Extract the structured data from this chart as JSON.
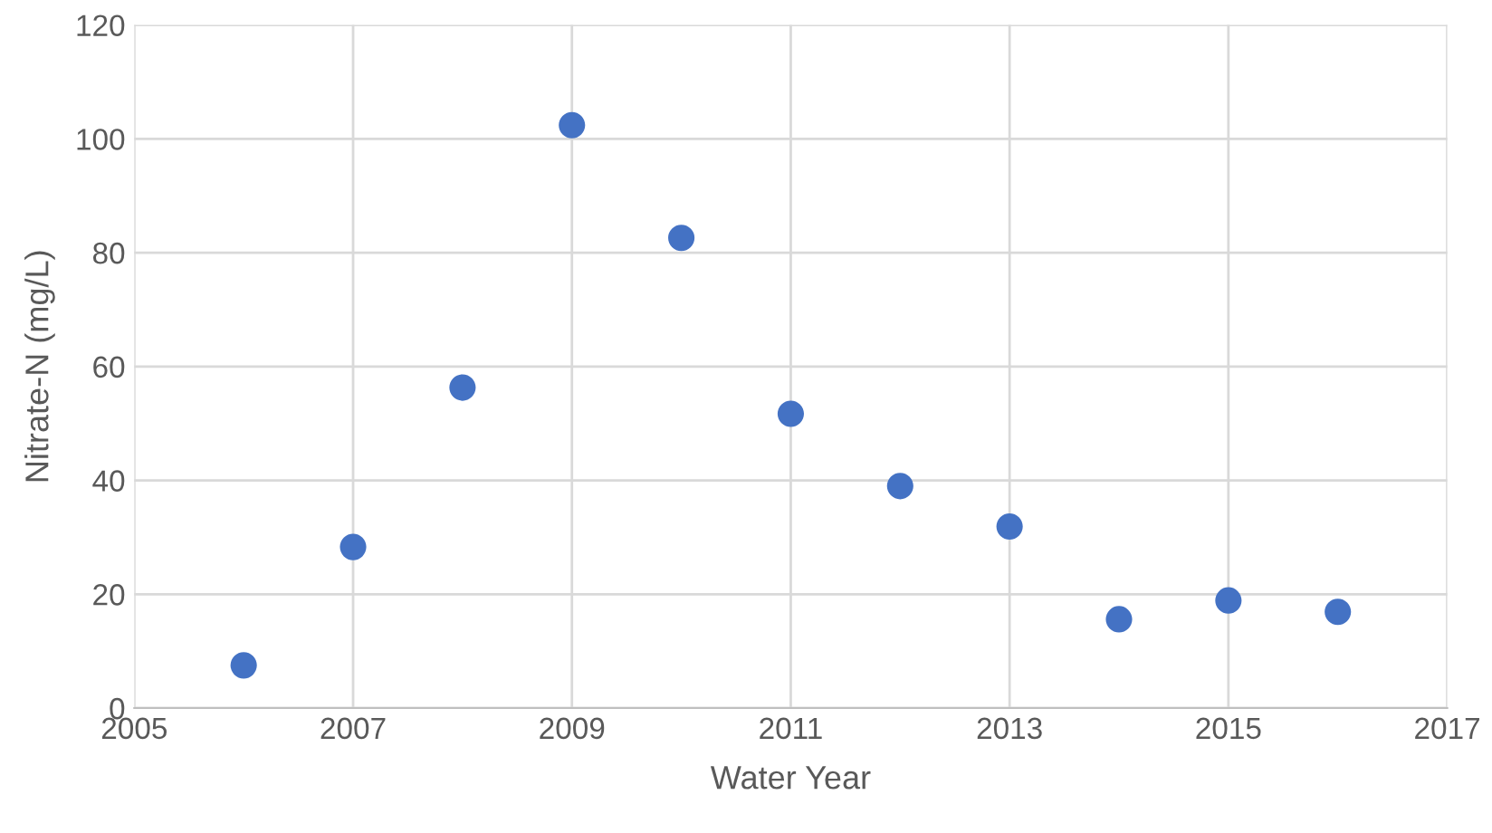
{
  "chart_data": {
    "type": "scatter",
    "xlabel": "Water Year",
    "ylabel": "Nitrate-N (mg/L)",
    "x": [
      2006,
      2007,
      2008,
      2009,
      2010,
      2011,
      2012,
      2013,
      2014,
      2015,
      2016
    ],
    "series": [
      {
        "color": "#4472c4",
        "values": [
          7.5,
          28.3,
          56.3,
          102.4,
          82.6,
          51.7,
          39,
          31.9,
          15.6,
          18.9,
          16.9
        ]
      }
    ],
    "xlim": [
      2005,
      2017
    ],
    "xticks": [
      2005,
      2007,
      2009,
      2011,
      2013,
      2015,
      2017
    ],
    "ylim": [
      0,
      120
    ],
    "yticks": [
      0,
      20,
      40,
      60,
      80,
      100,
      120
    ],
    "grid": true,
    "marker": "circle"
  }
}
